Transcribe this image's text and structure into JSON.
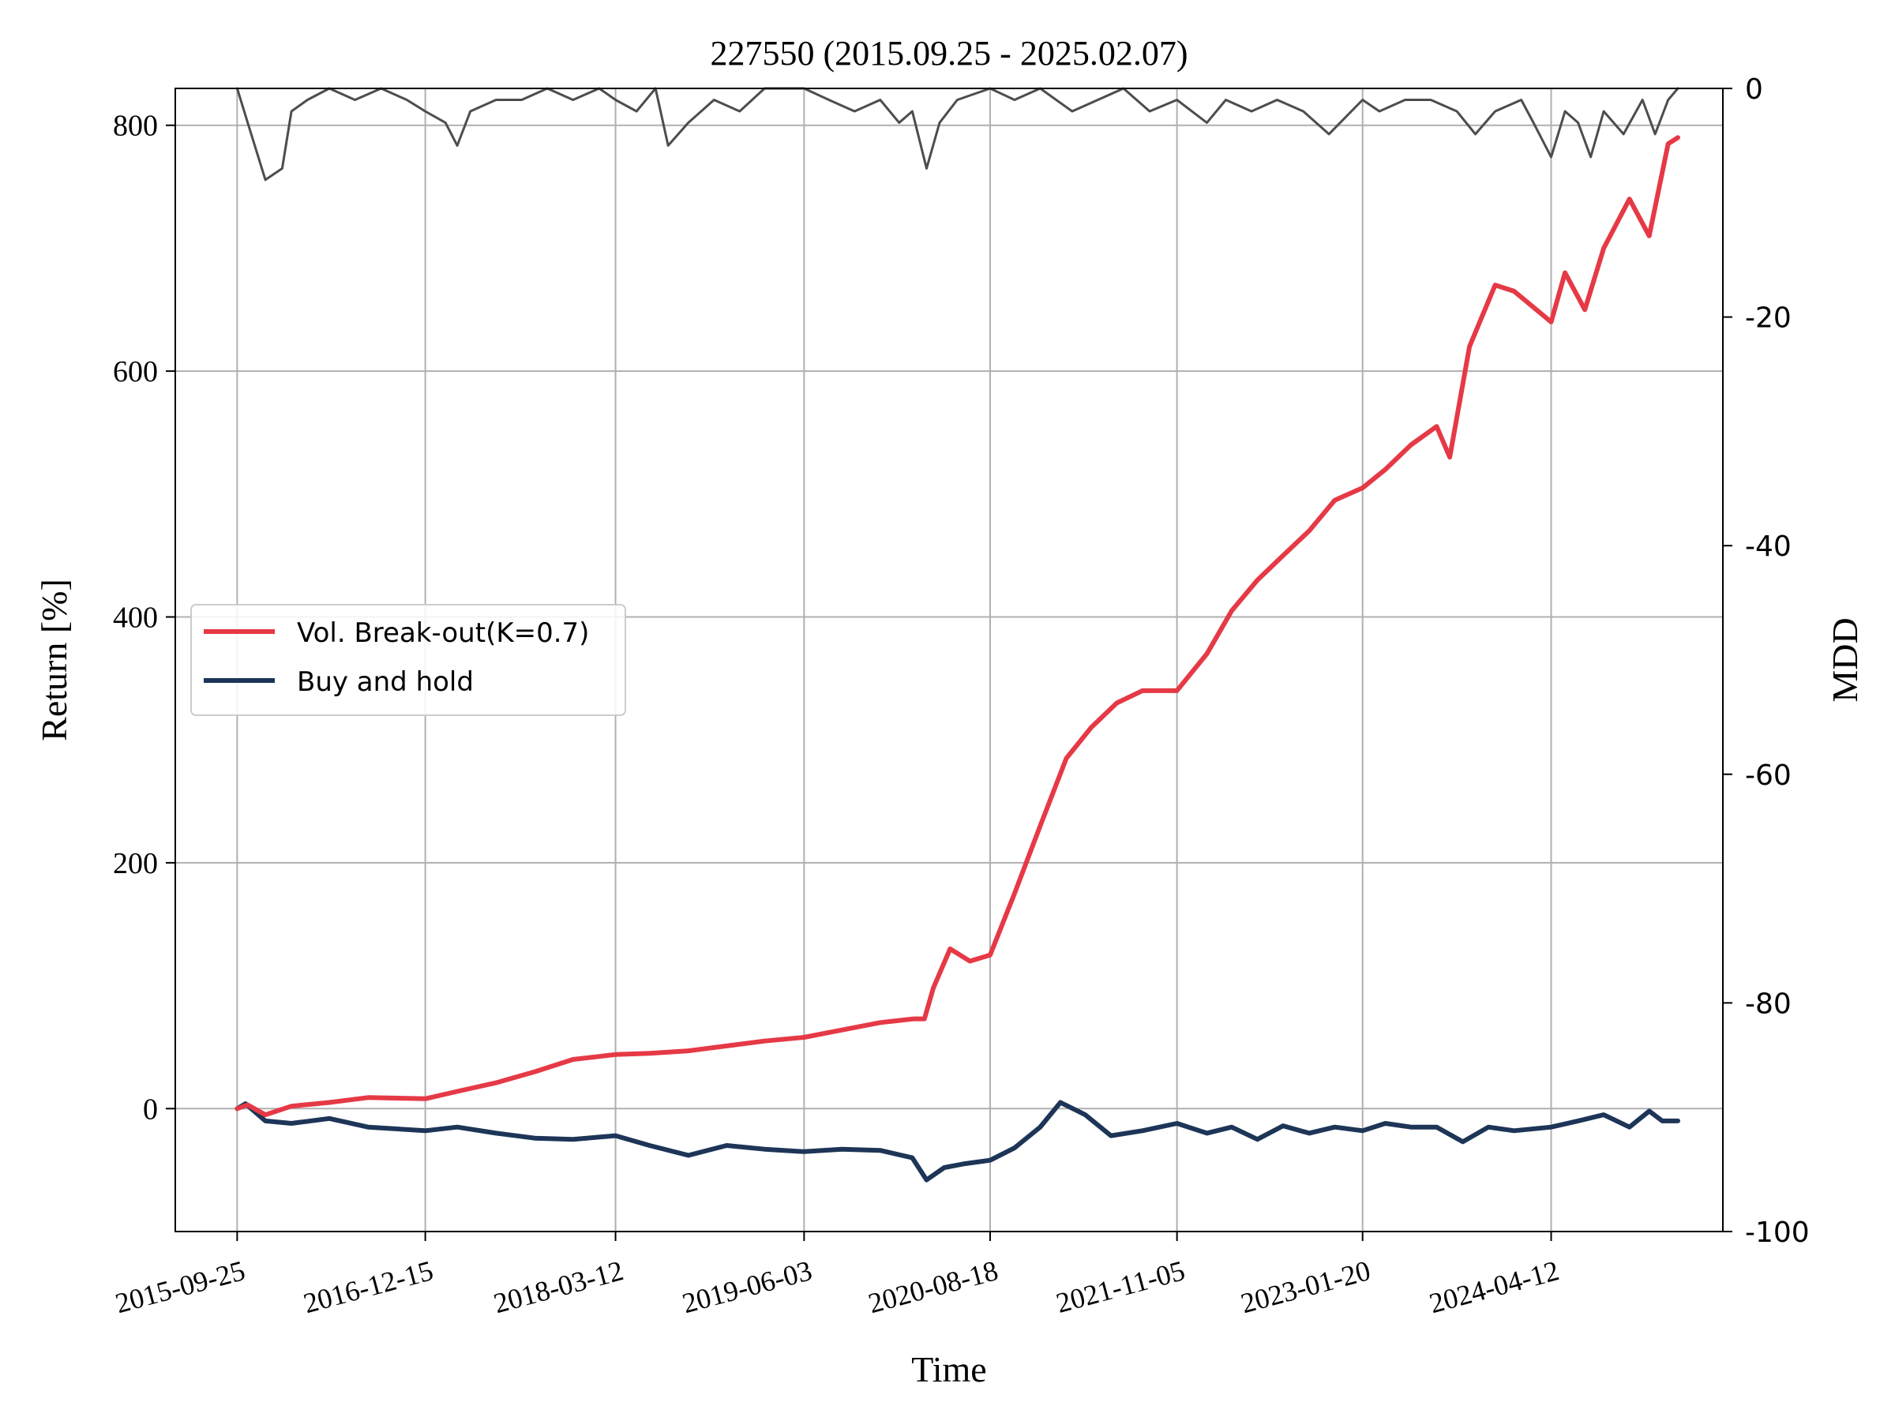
{
  "chart_data": {
    "type": "line",
    "title": "227550 (2015.09.25 - 2025.02.07)",
    "xlabel": "Time",
    "ylabel": "Return [%]",
    "y2label": "MDD",
    "xlim": [
      "2015-05-01",
      "2025-05-25"
    ],
    "ylim": [
      -100,
      830
    ],
    "y2lim": [
      -100,
      0
    ],
    "x_ticks": [
      "2015-09-25",
      "2016-12-15",
      "2018-03-12",
      "2019-06-03",
      "2020-08-18",
      "2021-11-05",
      "2023-01-20",
      "2024-04-12"
    ],
    "y_ticks": [
      0,
      200,
      400,
      600,
      800
    ],
    "y2_ticks": [
      0,
      -20,
      -40,
      -60,
      -80,
      -100
    ],
    "grid": true,
    "legend_position": "center-left",
    "series": [
      {
        "name": "Vol. Break-out(K=0.7)",
        "color": "#e63946",
        "axis": "left",
        "x": [
          "2015-09-25",
          "2015-10-20",
          "2015-12-01",
          "2016-02-01",
          "2016-05-01",
          "2016-08-01",
          "2016-12-15",
          "2017-03-01",
          "2017-06-01",
          "2017-09-01",
          "2017-12-01",
          "2018-03-12",
          "2018-06-01",
          "2018-09-01",
          "2018-12-01",
          "2019-03-01",
          "2019-06-03",
          "2019-09-01",
          "2019-12-01",
          "2020-02-18",
          "2020-03-15",
          "2020-04-05",
          "2020-05-15",
          "2020-07-01",
          "2020-08-18",
          "2020-10-15",
          "2020-12-15",
          "2021-02-15",
          "2021-04-15",
          "2021-06-15",
          "2021-08-15",
          "2021-11-05",
          "2022-01-15",
          "2022-03-15",
          "2022-05-15",
          "2022-07-15",
          "2022-09-15",
          "2022-11-15",
          "2023-01-20",
          "2023-03-15",
          "2023-05-15",
          "2023-07-15",
          "2023-08-15",
          "2023-10-01",
          "2023-12-01",
          "2024-01-15",
          "2024-04-12",
          "2024-05-15",
          "2024-07-01",
          "2024-08-15",
          "2024-10-15",
          "2024-12-01",
          "2025-01-15",
          "2025-02-07"
        ],
        "y": [
          0,
          3,
          -5,
          2,
          5,
          9,
          8,
          14,
          21,
          30,
          40,
          44,
          45,
          47,
          51,
          55,
          58,
          64,
          70,
          73,
          73,
          98,
          130,
          120,
          125,
          175,
          230,
          285,
          310,
          330,
          340,
          340,
          370,
          405,
          430,
          450,
          470,
          495,
          505,
          520,
          540,
          555,
          530,
          620,
          670,
          665,
          640,
          680,
          650,
          700,
          740,
          710,
          785,
          790
        ]
      },
      {
        "name": "Buy and hold",
        "color": "#1d3557",
        "axis": "left",
        "x": [
          "2015-09-25",
          "2015-10-15",
          "2015-12-01",
          "2016-02-01",
          "2016-05-01",
          "2016-08-01",
          "2016-12-15",
          "2017-03-01",
          "2017-06-01",
          "2017-09-01",
          "2017-12-01",
          "2018-03-12",
          "2018-06-01",
          "2018-09-01",
          "2018-12-01",
          "2019-03-01",
          "2019-06-03",
          "2019-09-01",
          "2019-12-01",
          "2020-02-15",
          "2020-03-20",
          "2020-05-01",
          "2020-06-15",
          "2020-08-18",
          "2020-10-15",
          "2020-12-15",
          "2021-02-01",
          "2021-04-01",
          "2021-06-01",
          "2021-08-15",
          "2021-11-05",
          "2022-01-15",
          "2022-03-15",
          "2022-05-15",
          "2022-07-15",
          "2022-09-15",
          "2022-11-15",
          "2023-01-20",
          "2023-03-15",
          "2023-05-15",
          "2023-07-15",
          "2023-09-15",
          "2023-11-15",
          "2024-01-15",
          "2024-04-12",
          "2024-06-15",
          "2024-08-15",
          "2024-10-15",
          "2024-12-01",
          "2025-01-01",
          "2025-02-07"
        ],
        "y": [
          0,
          4,
          -10,
          -12,
          -8,
          -15,
          -18,
          -15,
          -20,
          -24,
          -25,
          -22,
          -30,
          -38,
          -30,
          -33,
          -35,
          -33,
          -34,
          -40,
          -58,
          -48,
          -45,
          -42,
          -32,
          -15,
          5,
          -5,
          -22,
          -18,
          -12,
          -20,
          -15,
          -25,
          -14,
          -20,
          -15,
          -18,
          -12,
          -15,
          -15,
          -27,
          -15,
          -18,
          -15,
          -10,
          -5,
          -15,
          -2,
          -10,
          -10
        ]
      },
      {
        "name": "MDD",
        "color": "#4d4d4d",
        "axis": "right",
        "x": [
          "2015-09-25",
          "2015-10-20",
          "2015-12-01",
          "2016-01-10",
          "2016-02-01",
          "2016-03-10",
          "2016-05-01",
          "2016-07-01",
          "2016-09-01",
          "2016-11-01",
          "2016-12-15",
          "2017-02-01",
          "2017-03-01",
          "2017-04-01",
          "2017-06-01",
          "2017-08-01",
          "2017-10-01",
          "2017-12-01",
          "2018-02-01",
          "2018-03-12",
          "2018-05-01",
          "2018-06-15",
          "2018-07-15",
          "2018-09-01",
          "2018-11-01",
          "2019-01-01",
          "2019-03-01",
          "2019-06-03",
          "2019-08-01",
          "2019-10-01",
          "2019-12-01",
          "2020-01-15",
          "2020-02-15",
          "2020-03-20",
          "2020-04-20",
          "2020-06-01",
          "2020-08-18",
          "2020-10-15",
          "2020-12-15",
          "2021-03-01",
          "2021-05-01",
          "2021-07-01",
          "2021-09-01",
          "2021-11-05",
          "2022-01-15",
          "2022-03-01",
          "2022-05-01",
          "2022-07-01",
          "2022-09-01",
          "2022-11-01",
          "2023-01-20",
          "2023-03-01",
          "2023-05-01",
          "2023-07-01",
          "2023-09-01",
          "2023-10-15",
          "2023-12-01",
          "2024-02-01",
          "2024-03-01",
          "2024-04-12",
          "2024-05-15",
          "2024-06-15",
          "2024-07-15",
          "2024-08-15",
          "2024-10-01",
          "2024-11-15",
          "2024-12-15",
          "2025-01-15",
          "2025-02-07"
        ],
        "y": [
          0,
          -3,
          -8,
          -7,
          -2,
          -1,
          0,
          -1,
          0,
          -1,
          -2,
          -3,
          -5,
          -2,
          -1,
          -1,
          0,
          -1,
          0,
          -1,
          -2,
          0,
          -5,
          -3,
          -1,
          -2,
          0,
          0,
          -1,
          -2,
          -1,
          -3,
          -2,
          -7,
          -3,
          -1,
          0,
          -1,
          0,
          -2,
          -1,
          0,
          -2,
          -1,
          -3,
          -1,
          -2,
          -1,
          -2,
          -4,
          -1,
          -2,
          -1,
          -1,
          -2,
          -4,
          -2,
          -1,
          -3,
          -6,
          -2,
          -3,
          -6,
          -2,
          -4,
          -1,
          -4,
          -1,
          0
        ]
      }
    ]
  }
}
